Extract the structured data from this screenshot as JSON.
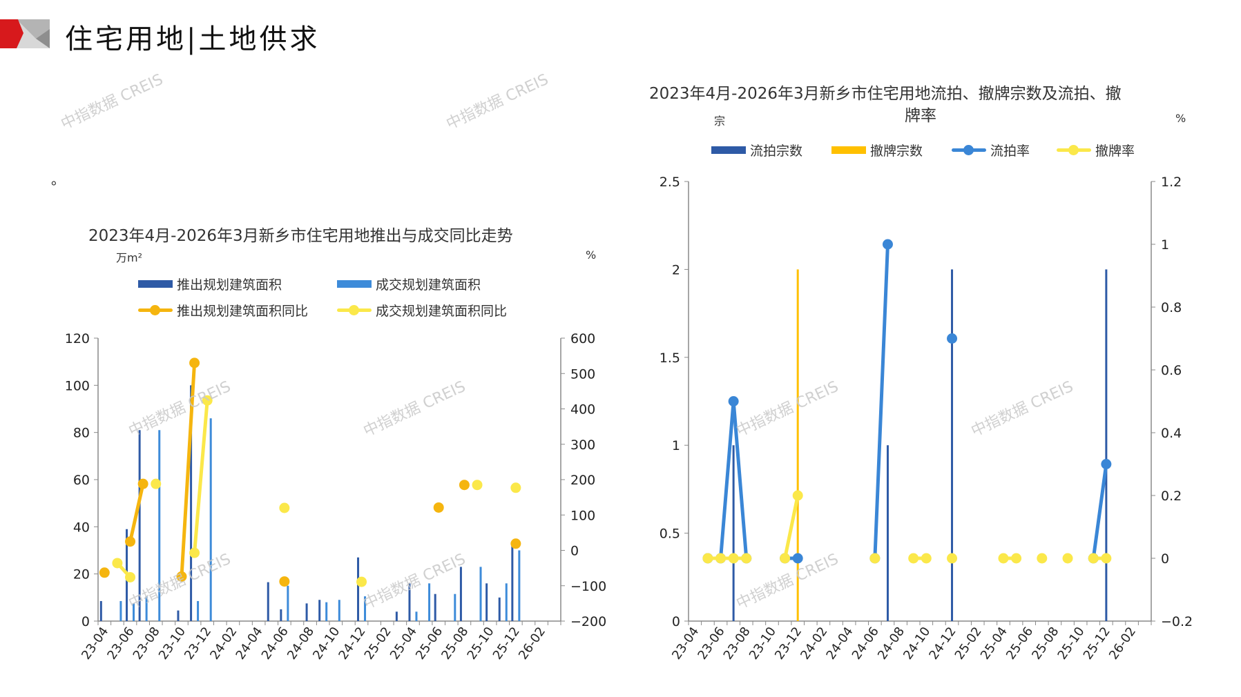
{
  "header": {
    "title": "住宅用地|土地供求"
  },
  "note": "。",
  "watermark": "中指数据 CREIS",
  "colors": {
    "dark_blue": "#2E5AA6",
    "light_blue": "#3D8BD9",
    "orange": "#F5B50F",
    "yellow": "#FBE84A",
    "gold": "#FFC000",
    "rate_blue": "#3A86D6",
    "logo_red": "#D7191C"
  },
  "chart_data": [
    {
      "type": "bar",
      "title": "2023年4月-2026年3月新乡市住宅用地推出与成交同比走势",
      "ylabel": "万m²",
      "y2label": "%",
      "ylim": [
        0,
        120
      ],
      "y2lim": [
        -200,
        600
      ],
      "yticks": [
        "0",
        "20",
        "40",
        "60",
        "80",
        "100",
        "120"
      ],
      "y2ticks": [
        "−200",
        "−100",
        "0",
        "100",
        "200",
        "300",
        "400",
        "500",
        "600"
      ],
      "legend": [
        "推出规划建筑面积",
        "成交规划建筑面积",
        "推出规划建筑面积同比",
        "成交规划建筑面积同比"
      ],
      "legend_placement": "top",
      "xticks": [
        "23-04",
        "23-06",
        "23-08",
        "23-10",
        "23-12",
        "24-02",
        "24-04",
        "24-06",
        "24-08",
        "24-10",
        "24-12",
        "25-02",
        "25-04",
        "25-06",
        "25-08",
        "25-10",
        "25-12",
        "26-02"
      ],
      "months": 36,
      "series": [
        {
          "name": "推出规划建筑面积",
          "kind": "bar",
          "axis": "left",
          "values": [
            8.5,
            0,
            39,
            81,
            0,
            0,
            4.5,
            100,
            0,
            0,
            0,
            0,
            0,
            16.5,
            5,
            0,
            7.5,
            9,
            0,
            0,
            27,
            0,
            0,
            4,
            16,
            0,
            11.5,
            0,
            23,
            0,
            16,
            10,
            32,
            0,
            0,
            0
          ]
        },
        {
          "name": "成交规划建筑面积",
          "kind": "bar",
          "axis": "left",
          "values": [
            0,
            8.5,
            7.5,
            10.5,
            81,
            0,
            0,
            8.5,
            86,
            0,
            0,
            0,
            0,
            0,
            15,
            0,
            0,
            8,
            9,
            0,
            10.5,
            0,
            0,
            0,
            4,
            16,
            0,
            11.5,
            0,
            23,
            0,
            16,
            30,
            0,
            0,
            0
          ]
        },
        {
          "name": "推出规划建筑面积同比",
          "kind": "line",
          "axis": "right",
          "values": [
            -63,
            null,
            25,
            188,
            null,
            null,
            -74,
            530,
            null,
            null,
            null,
            null,
            null,
            null,
            -88,
            null,
            null,
            null,
            null,
            null,
            null,
            null,
            null,
            null,
            null,
            null,
            121,
            null,
            185,
            null,
            null,
            null,
            19,
            null,
            null,
            null
          ]
        },
        {
          "name": "成交规划建筑面积同比",
          "kind": "line",
          "axis": "right",
          "values": [
            null,
            -36,
            -76,
            null,
            188,
            null,
            null,
            -7,
            424,
            null,
            null,
            null,
            null,
            null,
            120,
            null,
            null,
            null,
            null,
            null,
            -89,
            null,
            null,
            null,
            null,
            null,
            null,
            null,
            null,
            185,
            null,
            null,
            177,
            null,
            null,
            null
          ]
        }
      ]
    },
    {
      "type": "bar",
      "title_line1": "2023年4月-2026年3月新乡市住宅用地流拍、撤牌宗数及流拍、撤",
      "title_line2": "牌率",
      "ylabel": "宗",
      "y2label": "%",
      "ylim": [
        0,
        2.5
      ],
      "y2lim": [
        -0.2,
        1.2
      ],
      "yticks": [
        "0",
        "0.5",
        "1",
        "1.5",
        "2",
        "2.5"
      ],
      "y2ticks": [
        "−0.2",
        "0",
        "0.2",
        "0.4",
        "0.6",
        "0.8",
        "1",
        "1.2"
      ],
      "legend": [
        "流拍宗数",
        "撤牌宗数",
        "流拍率",
        "撤牌率"
      ],
      "legend_placement": "top",
      "xticks": [
        "23-04",
        "23-06",
        "23-08",
        "23-10",
        "23-12",
        "24-02",
        "24-04",
        "24-06",
        "24-08",
        "24-10",
        "24-12",
        "25-02",
        "25-04",
        "25-06",
        "25-08",
        "25-10",
        "25-12",
        "26-02"
      ],
      "months": 36,
      "series": [
        {
          "name": "流拍宗数",
          "kind": "bar",
          "axis": "left",
          "values": [
            0,
            0,
            0,
            1,
            0,
            0,
            0,
            0,
            0,
            0,
            0,
            0,
            0,
            0,
            0,
            1,
            0,
            0,
            0,
            0,
            2,
            0,
            0,
            0,
            0,
            0,
            0,
            0,
            0,
            0,
            0,
            0,
            2,
            0,
            0,
            0
          ]
        },
        {
          "name": "撤牌宗数",
          "kind": "bar",
          "axis": "left",
          "values": [
            0,
            0,
            0,
            0,
            0,
            0,
            0,
            0,
            2,
            0,
            0,
            0,
            0,
            0,
            0,
            0,
            0,
            0,
            0,
            0,
            0,
            0,
            0,
            0,
            0,
            0,
            0,
            0,
            0,
            0,
            0,
            0,
            0,
            0,
            0,
            0
          ]
        },
        {
          "name": "流拍率",
          "kind": "line",
          "axis": "right",
          "values": [
            null,
            0,
            0,
            0.5,
            0,
            null,
            null,
            0,
            0,
            null,
            null,
            null,
            null,
            null,
            0,
            1.0,
            null,
            null,
            null,
            null,
            0.7,
            null,
            null,
            null,
            null,
            null,
            null,
            null,
            null,
            null,
            null,
            0,
            0.3,
            null,
            null,
            null
          ]
        },
        {
          "name": "撤牌率",
          "kind": "line",
          "axis": "right",
          "values": [
            null,
            0,
            0,
            0,
            0,
            null,
            null,
            0,
            0.2,
            null,
            null,
            null,
            null,
            null,
            0,
            null,
            null,
            0,
            0,
            null,
            0,
            null,
            null,
            null,
            0,
            0,
            null,
            0,
            null,
            0,
            null,
            0,
            0,
            null,
            null,
            null
          ]
        }
      ]
    }
  ]
}
